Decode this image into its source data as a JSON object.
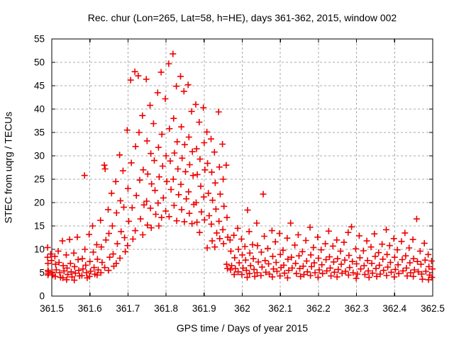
{
  "chart_data": {
    "type": "scatter",
    "title": "Rec. chur (Lon=265, Lat=58, h=HE), days 361-362, 2015, window 002",
    "xlabel": "GPS time / Days of year 2015",
    "ylabel": "STEC from uqrg / TECUs",
    "xlim": [
      361.5,
      362.5
    ],
    "ylim": [
      0,
      55
    ],
    "x_tick_values": [
      361.5,
      361.6,
      361.7,
      361.8,
      361.9,
      362,
      362.1,
      362.2,
      362.3,
      362.4,
      362.5
    ],
    "x_tick_labels": [
      "361.5",
      "361.6",
      "361.7",
      "361.8",
      "361.9",
      "362",
      "362.1",
      "362.2",
      "362.3",
      "362.4",
      "362.5"
    ],
    "y_tick_values": [
      0,
      5,
      10,
      15,
      20,
      25,
      30,
      35,
      40,
      45,
      50,
      55
    ],
    "y_tick_labels": [
      "0",
      "5",
      "10",
      "15",
      "20",
      "25",
      "30",
      "35",
      "40",
      "45",
      "50",
      "55"
    ],
    "grid": true,
    "legend": "none",
    "marker": "plus",
    "colors": {
      "marker": "#f00000",
      "grid": "#a9a9a9",
      "frame": "#000000",
      "text": "#000000",
      "background": "#ffffff"
    },
    "points": [
      [
        361.489,
        10.4
      ],
      [
        361.489,
        8.3
      ],
      [
        361.49,
        7.0
      ],
      [
        361.49,
        5.5
      ],
      [
        361.491,
        5.2
      ],
      [
        361.491,
        4.8
      ],
      [
        361.49,
        4.5
      ],
      [
        361.497,
        9.0
      ],
      [
        361.499,
        7.6
      ],
      [
        361.501,
        5.1
      ],
      [
        361.503,
        4.5
      ],
      [
        361.508,
        8.5
      ],
      [
        361.51,
        6.8
      ],
      [
        361.512,
        5.6
      ],
      [
        361.509,
        4.2
      ],
      [
        361.517,
        9.6
      ],
      [
        361.519,
        7.2
      ],
      [
        361.521,
        5.0
      ],
      [
        361.523,
        4.0
      ],
      [
        361.528,
        11.8
      ],
      [
        361.53,
        6.5
      ],
      [
        361.532,
        5.4
      ],
      [
        361.529,
        3.9
      ],
      [
        361.538,
        8.8
      ],
      [
        361.54,
        6.0
      ],
      [
        361.542,
        4.6
      ],
      [
        361.539,
        3.5
      ],
      [
        361.547,
        12.1
      ],
      [
        361.549,
        7.0
      ],
      [
        361.551,
        5.2
      ],
      [
        361.553,
        4.1
      ],
      [
        361.558,
        9.2
      ],
      [
        361.56,
        6.3
      ],
      [
        361.562,
        4.9
      ],
      [
        361.559,
        3.4
      ],
      [
        361.567,
        12.6
      ],
      [
        361.569,
        7.8
      ],
      [
        361.571,
        5.5
      ],
      [
        361.573,
        4.3
      ],
      [
        361.586,
        25.8
      ],
      [
        361.58,
        8.0
      ],
      [
        361.582,
        5.8
      ],
      [
        361.579,
        4.4
      ],
      [
        361.587,
        10.0
      ],
      [
        361.589,
        6.6
      ],
      [
        361.591,
        5.0
      ],
      [
        361.593,
        3.9
      ],
      [
        361.598,
        13.2
      ],
      [
        361.6,
        7.4
      ],
      [
        361.602,
        5.3
      ],
      [
        361.599,
        4.2
      ],
      [
        361.607,
        15.0
      ],
      [
        361.609,
        9.4
      ],
      [
        361.611,
        6.1
      ],
      [
        361.613,
        4.7
      ],
      [
        361.618,
        11.0
      ],
      [
        361.62,
        7.9
      ],
      [
        361.622,
        5.6
      ],
      [
        361.619,
        4.5
      ],
      [
        361.628,
        16.2
      ],
      [
        361.63,
        10.5
      ],
      [
        361.632,
        7.2
      ],
      [
        361.629,
        5.0
      ],
      [
        361.638,
        28.0
      ],
      [
        361.64,
        27.2
      ],
      [
        361.642,
        12.0
      ],
      [
        361.639,
        6.1
      ],
      [
        361.648,
        18.5
      ],
      [
        361.65,
        13.4
      ],
      [
        361.652,
        8.3
      ],
      [
        361.649,
        5.5
      ],
      [
        361.657,
        22.0
      ],
      [
        361.659,
        15.0
      ],
      [
        361.661,
        9.0
      ],
      [
        361.663,
        6.4
      ],
      [
        361.668,
        24.5
      ],
      [
        361.67,
        17.8
      ],
      [
        361.672,
        11.2
      ],
      [
        361.669,
        7.0
      ],
      [
        361.678,
        30.2
      ],
      [
        361.68,
        20.4
      ],
      [
        361.682,
        13.8
      ],
      [
        361.679,
        8.1
      ],
      [
        361.687,
        26.8
      ],
      [
        361.689,
        19.0
      ],
      [
        361.691,
        12.5
      ],
      [
        361.693,
        9.5
      ],
      [
        361.698,
        35.5
      ],
      [
        361.7,
        23.0
      ],
      [
        361.702,
        16.0
      ],
      [
        361.699,
        10.8
      ],
      [
        361.707,
        46.2
      ],
      [
        361.709,
        28.5
      ],
      [
        361.711,
        18.9
      ],
      [
        361.713,
        12.2
      ],
      [
        361.718,
        48.0
      ],
      [
        361.72,
        32.0
      ],
      [
        361.722,
        21.5
      ],
      [
        361.719,
        14.0
      ],
      [
        361.727,
        47.1
      ],
      [
        361.729,
        35.0
      ],
      [
        361.731,
        24.8
      ],
      [
        361.733,
        16.5
      ],
      [
        361.738,
        38.6
      ],
      [
        361.74,
        27.0
      ],
      [
        361.742,
        19.5
      ],
      [
        361.739,
        13.1
      ],
      [
        361.748,
        46.4
      ],
      [
        361.75,
        33.2
      ],
      [
        361.752,
        26.1
      ],
      [
        361.749,
        20.3
      ],
      [
        361.751,
        15.2
      ],
      [
        361.758,
        40.8
      ],
      [
        361.76,
        30.5
      ],
      [
        361.762,
        24.0
      ],
      [
        361.759,
        18.8
      ],
      [
        361.761,
        14.6
      ],
      [
        361.767,
        36.9
      ],
      [
        361.769,
        29.0
      ],
      [
        361.771,
        22.6
      ],
      [
        361.773,
        17.5
      ],
      [
        361.778,
        43.5
      ],
      [
        361.78,
        31.8
      ],
      [
        361.782,
        25.5
      ],
      [
        361.779,
        19.9
      ],
      [
        361.781,
        15.0
      ],
      [
        361.787,
        47.9
      ],
      [
        361.789,
        34.6
      ],
      [
        361.791,
        27.8
      ],
      [
        361.793,
        21.0
      ],
      [
        361.788,
        16.8
      ],
      [
        361.798,
        42.2
      ],
      [
        361.8,
        30.0
      ],
      [
        361.802,
        24.5
      ],
      [
        361.799,
        18.2
      ],
      [
        361.807,
        49.7
      ],
      [
        361.809,
        35.8
      ],
      [
        361.811,
        28.9
      ],
      [
        361.813,
        22.8
      ],
      [
        361.808,
        17.0
      ],
      [
        361.818,
        51.8
      ],
      [
        361.82,
        38.0
      ],
      [
        361.822,
        30.6
      ],
      [
        361.819,
        25.0
      ],
      [
        361.821,
        19.4
      ],
      [
        361.827,
        44.9
      ],
      [
        361.829,
        33.0
      ],
      [
        361.831,
        27.2
      ],
      [
        361.833,
        21.7
      ],
      [
        361.828,
        16.1
      ],
      [
        361.838,
        47.0
      ],
      [
        361.84,
        36.2
      ],
      [
        361.842,
        29.5
      ],
      [
        361.839,
        23.9
      ],
      [
        361.841,
        18.5
      ],
      [
        361.847,
        43.8
      ],
      [
        361.849,
        32.4
      ],
      [
        361.851,
        26.6
      ],
      [
        361.853,
        20.8
      ],
      [
        361.848,
        15.9
      ],
      [
        361.858,
        45.2
      ],
      [
        361.86,
        34.0
      ],
      [
        361.862,
        28.1
      ],
      [
        361.859,
        22.3
      ],
      [
        361.861,
        17.7
      ],
      [
        361.867,
        39.5
      ],
      [
        361.869,
        30.9
      ],
      [
        361.871,
        25.8
      ],
      [
        361.873,
        19.6
      ],
      [
        361.868,
        15.5
      ],
      [
        361.878,
        41.0
      ],
      [
        361.88,
        31.5
      ],
      [
        361.882,
        26.0
      ],
      [
        361.879,
        20.0
      ],
      [
        361.881,
        15.8
      ],
      [
        361.887,
        37.2
      ],
      [
        361.889,
        29.3
      ],
      [
        361.891,
        23.5
      ],
      [
        361.893,
        18.0
      ],
      [
        361.888,
        13.6
      ],
      [
        361.898,
        40.3
      ],
      [
        361.9,
        32.8
      ],
      [
        361.902,
        27.0
      ],
      [
        361.899,
        21.2
      ],
      [
        361.901,
        16.3
      ],
      [
        361.907,
        35.1
      ],
      [
        361.909,
        28.4
      ],
      [
        361.911,
        22.0
      ],
      [
        361.913,
        17.2
      ],
      [
        361.908,
        10.3
      ],
      [
        361.918,
        33.6
      ],
      [
        361.92,
        26.5
      ],
      [
        361.922,
        20.5
      ],
      [
        361.919,
        15.4
      ],
      [
        361.921,
        11.8
      ],
      [
        361.927,
        30.8
      ],
      [
        361.929,
        24.2
      ],
      [
        361.931,
        18.6
      ],
      [
        361.933,
        13.5
      ],
      [
        361.928,
        10.5
      ],
      [
        361.938,
        39.4
      ],
      [
        361.94,
        27.6
      ],
      [
        361.942,
        21.8
      ],
      [
        361.939,
        16.0
      ],
      [
        361.941,
        12.3
      ],
      [
        361.948,
        32.5
      ],
      [
        361.95,
        25.0
      ],
      [
        361.952,
        19.2
      ],
      [
        361.949,
        14.2
      ],
      [
        361.951,
        11.2
      ],
      [
        361.958,
        28.0
      ],
      [
        361.96,
        16.8
      ],
      [
        361.962,
        12.6
      ],
      [
        361.959,
        6.8
      ],
      [
        361.961,
        5.9
      ],
      [
        361.968,
        12.0
      ],
      [
        361.97,
        9.6
      ],
      [
        361.972,
        6.5
      ],
      [
        361.969,
        5.6
      ],
      [
        361.978,
        13.0
      ],
      [
        361.98,
        8.2
      ],
      [
        361.982,
        5.9
      ],
      [
        361.979,
        4.6
      ],
      [
        361.988,
        14.5
      ],
      [
        361.99,
        10.0
      ],
      [
        361.992,
        7.1
      ],
      [
        361.989,
        5.2
      ],
      [
        361.998,
        12.2
      ],
      [
        362.0,
        8.8
      ],
      [
        362.002,
        6.0
      ],
      [
        361.999,
        4.6
      ],
      [
        362.007,
        10.6
      ],
      [
        362.009,
        7.7
      ],
      [
        362.011,
        5.5
      ],
      [
        362.013,
        4.0
      ],
      [
        362.014,
        18.4
      ],
      [
        362.018,
        13.8
      ],
      [
        362.02,
        9.2
      ],
      [
        362.022,
        6.5
      ],
      [
        362.019,
        4.8
      ],
      [
        362.027,
        11.0
      ],
      [
        362.029,
        8.0
      ],
      [
        362.031,
        5.7
      ],
      [
        362.033,
        4.2
      ],
      [
        362.038,
        15.6
      ],
      [
        362.04,
        10.8
      ],
      [
        362.042,
        7.3
      ],
      [
        362.039,
        5.0
      ],
      [
        362.055,
        21.8
      ],
      [
        362.05,
        9.4
      ],
      [
        362.052,
        6.2
      ],
      [
        362.049,
        4.4
      ],
      [
        362.058,
        12.8
      ],
      [
        362.06,
        7.6
      ],
      [
        362.062,
        5.1
      ],
      [
        362.067,
        10.2
      ],
      [
        362.069,
        6.9
      ],
      [
        362.071,
        4.7
      ],
      [
        362.078,
        14.0
      ],
      [
        362.08,
        8.5
      ],
      [
        362.082,
        5.8
      ],
      [
        362.079,
        4.1
      ],
      [
        362.087,
        11.6
      ],
      [
        362.089,
        7.2
      ],
      [
        362.091,
        5.3
      ],
      [
        362.098,
        13.4
      ],
      [
        362.1,
        8.9
      ],
      [
        362.102,
        6.1
      ],
      [
        362.099,
        4.3
      ],
      [
        362.107,
        9.8
      ],
      [
        362.109,
        6.6
      ],
      [
        362.111,
        4.9
      ],
      [
        362.118,
        12.4
      ],
      [
        362.12,
        7.9
      ],
      [
        362.122,
        5.5
      ],
      [
        362.119,
        3.9
      ],
      [
        362.127,
        15.6
      ],
      [
        362.129,
        8.3
      ],
      [
        362.131,
        6.0
      ],
      [
        362.138,
        10.9
      ],
      [
        362.14,
        7.0
      ],
      [
        362.142,
        4.8
      ],
      [
        362.147,
        13.1
      ],
      [
        362.149,
        8.6
      ],
      [
        362.151,
        5.9
      ],
      [
        362.153,
        4.2
      ],
      [
        362.158,
        9.5
      ],
      [
        362.16,
        6.4
      ],
      [
        362.162,
        4.6
      ],
      [
        362.167,
        11.9
      ],
      [
        362.169,
        7.5
      ],
      [
        362.171,
        5.2
      ],
      [
        362.178,
        14.7
      ],
      [
        362.18,
        8.8
      ],
      [
        362.182,
        6.3
      ],
      [
        362.179,
        4.4
      ],
      [
        362.187,
        10.4
      ],
      [
        362.189,
        7.1
      ],
      [
        362.191,
        5.0
      ],
      [
        362.198,
        12.6
      ],
      [
        362.2,
        8.1
      ],
      [
        362.202,
        5.6
      ],
      [
        362.199,
        4.0
      ],
      [
        362.207,
        9.9
      ],
      [
        362.209,
        6.7
      ],
      [
        362.211,
        4.8
      ],
      [
        362.218,
        11.2
      ],
      [
        362.22,
        7.8
      ],
      [
        362.222,
        5.4
      ],
      [
        362.227,
        13.9
      ],
      [
        362.229,
        8.4
      ],
      [
        362.231,
        6.0
      ],
      [
        362.233,
        4.3
      ],
      [
        362.238,
        10.7
      ],
      [
        362.24,
        7.3
      ],
      [
        362.242,
        5.1
      ],
      [
        362.248,
        12.0
      ],
      [
        362.25,
        8.0
      ],
      [
        362.252,
        5.7
      ],
      [
        362.249,
        4.1
      ],
      [
        362.258,
        9.6
      ],
      [
        362.26,
        6.8
      ],
      [
        362.262,
        4.9
      ],
      [
        362.267,
        11.5
      ],
      [
        362.269,
        7.7
      ],
      [
        362.271,
        5.3
      ],
      [
        362.278,
        13.6
      ],
      [
        362.28,
        8.7
      ],
      [
        362.282,
        6.1
      ],
      [
        362.279,
        4.5
      ],
      [
        362.287,
        14.8
      ],
      [
        362.289,
        7.4
      ],
      [
        362.291,
        5.0
      ],
      [
        362.298,
        10.1
      ],
      [
        362.3,
        6.9
      ],
      [
        362.302,
        4.7
      ],
      [
        362.299,
        3.8
      ],
      [
        362.307,
        12.9
      ],
      [
        362.309,
        8.2
      ],
      [
        362.311,
        5.8
      ],
      [
        362.318,
        9.7
      ],
      [
        362.32,
        6.5
      ],
      [
        362.322,
        4.6
      ],
      [
        362.327,
        11.8
      ],
      [
        362.329,
        7.6
      ],
      [
        362.331,
        5.4
      ],
      [
        362.333,
        4.0
      ],
      [
        362.338,
        10.5
      ],
      [
        362.34,
        7.0
      ],
      [
        362.342,
        4.9
      ],
      [
        362.347,
        13.3
      ],
      [
        362.349,
        8.5
      ],
      [
        362.351,
        5.9
      ],
      [
        362.353,
        4.2
      ],
      [
        362.358,
        9.3
      ],
      [
        362.36,
        6.6
      ],
      [
        362.362,
        4.7
      ],
      [
        362.367,
        11.1
      ],
      [
        362.369,
        7.9
      ],
      [
        362.371,
        5.5
      ],
      [
        362.378,
        14.2
      ],
      [
        362.38,
        8.9
      ],
      [
        362.382,
        6.2
      ],
      [
        362.379,
        4.4
      ],
      [
        362.387,
        10.8
      ],
      [
        362.389,
        7.2
      ],
      [
        362.391,
        5.1
      ],
      [
        362.398,
        12.3
      ],
      [
        362.4,
        8.3
      ],
      [
        362.402,
        5.7
      ],
      [
        362.399,
        4.1
      ],
      [
        362.407,
        9.9
      ],
      [
        362.409,
        6.7
      ],
      [
        362.411,
        4.8
      ],
      [
        362.418,
        11.7
      ],
      [
        362.42,
        7.8
      ],
      [
        362.422,
        5.4
      ],
      [
        362.427,
        13.5
      ],
      [
        362.429,
        8.6
      ],
      [
        362.431,
        6.0
      ],
      [
        362.433,
        4.3
      ],
      [
        362.438,
        10.3
      ],
      [
        362.44,
        7.1
      ],
      [
        362.442,
        5.0
      ],
      [
        362.448,
        12.1
      ],
      [
        362.45,
        8.0
      ],
      [
        362.452,
        5.6
      ],
      [
        362.449,
        4.2
      ],
      [
        362.458,
        16.5
      ],
      [
        362.46,
        7.4
      ],
      [
        362.462,
        5.2
      ],
      [
        362.467,
        9.6
      ],
      [
        362.469,
        6.8
      ],
      [
        362.471,
        4.7
      ],
      [
        362.473,
        3.6
      ],
      [
        362.478,
        11.3
      ],
      [
        362.48,
        7.7
      ],
      [
        362.482,
        5.3
      ],
      [
        362.488,
        8.9
      ],
      [
        362.49,
        6.3
      ],
      [
        362.492,
        4.5
      ],
      [
        362.489,
        3.5
      ],
      [
        362.497,
        7.5
      ],
      [
        362.499,
        5.8
      ],
      [
        362.498,
        4.0
      ]
    ]
  }
}
